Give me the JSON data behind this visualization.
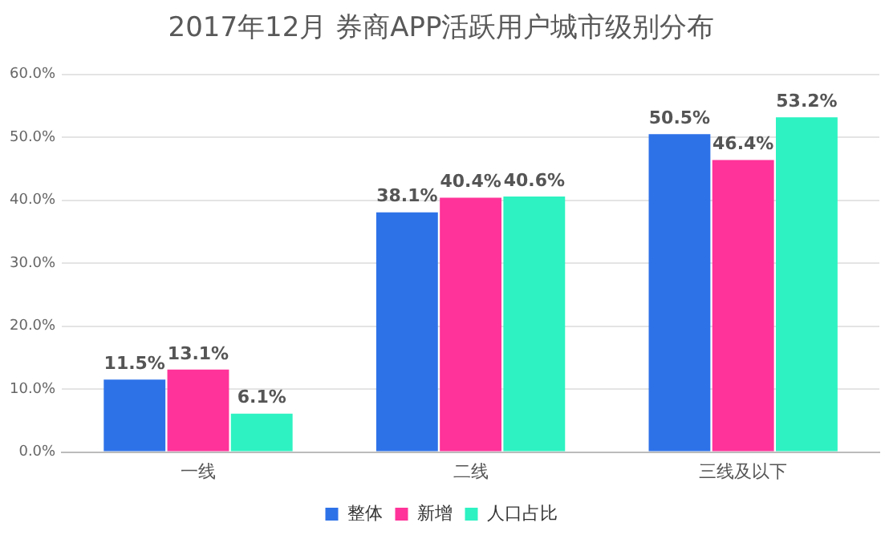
{
  "chart_data": {
    "type": "bar",
    "title": "2017年12月 券商APP活跃用户城市级别分布",
    "categories": [
      "一线",
      "二线",
      "三线及以下"
    ],
    "series": [
      {
        "name": "整体",
        "color": "#2e72e8",
        "values": [
          11.5,
          38.1,
          50.5
        ],
        "value_labels": [
          "11.5%",
          "38.1%",
          "50.5%"
        ]
      },
      {
        "name": "新增",
        "color": "#ff3399",
        "values": [
          13.1,
          40.4,
          46.4
        ],
        "value_labels": [
          "13.1%",
          "40.4%",
          "46.4%"
        ]
      },
      {
        "name": "人口占比",
        "color": "#2ef2c2",
        "values": [
          6.1,
          40.6,
          53.2
        ],
        "value_labels": [
          "6.1%",
          "40.6%",
          "53.2%"
        ]
      }
    ],
    "ylim": [
      0,
      60
    ],
    "yticks": [
      {
        "value": 0,
        "label": "0.0%"
      },
      {
        "value": 10,
        "label": "10.0%"
      },
      {
        "value": 20,
        "label": "20.0%"
      },
      {
        "value": 30,
        "label": "30.0%"
      },
      {
        "value": 40,
        "label": "40.0%"
      },
      {
        "value": 50,
        "label": "50.0%"
      },
      {
        "value": 60,
        "label": "60.0%"
      }
    ],
    "grid": "y",
    "legend": "bottom"
  }
}
